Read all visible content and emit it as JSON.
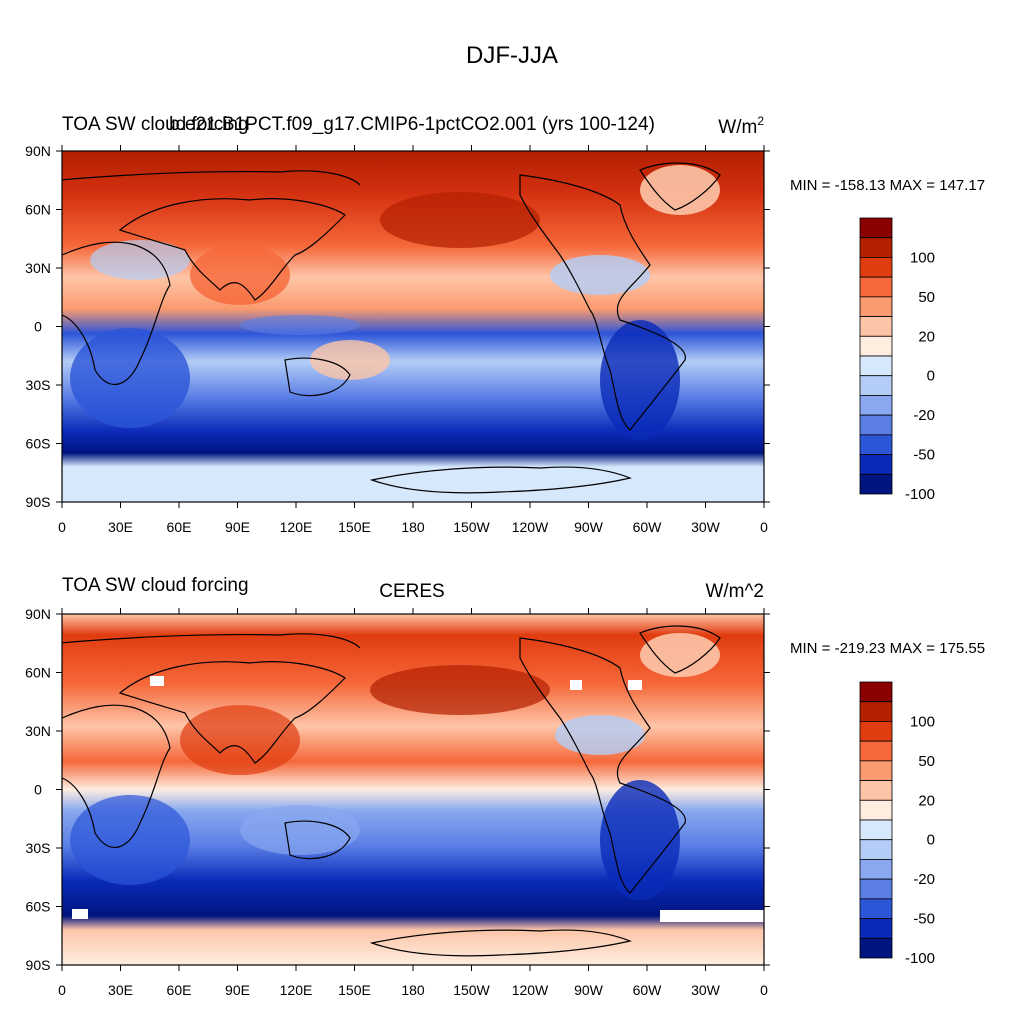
{
  "figure": {
    "title": "DJF-JJA"
  },
  "chart_data": [
    {
      "type": "heatmap",
      "title_left": "TOA SW cloud forcing",
      "title_center": "b.e21.B1PCT.f09_g17.CMIP6-1pctCO2.001 (yrs 100-124)",
      "units": "W/m",
      "units_sup": "2",
      "stats": "MIN = -158.13 MAX = 147.17",
      "min": -158.13,
      "max": 147.17,
      "x_ticks": [
        "0",
        "30E",
        "60E",
        "90E",
        "120E",
        "150E",
        "180",
        "150W",
        "120W",
        "90W",
        "60W",
        "30W",
        "0"
      ],
      "y_ticks": [
        "90N",
        "60N",
        "30N",
        "0",
        "30S",
        "60S",
        "90S"
      ],
      "colorbar_levels": [
        -100,
        -50,
        -20,
        0,
        20,
        50,
        100
      ],
      "colorbar_labels": [
        "100",
        "50",
        "20",
        "0",
        "-20",
        "-50",
        "-100"
      ],
      "colorbar_colors": [
        "#8b0000",
        "#b22000",
        "#e03c10",
        "#f6683a",
        "#fb9a6e",
        "#fdc5a8",
        "#fdeee0",
        "#d6e8fb",
        "#b3cdf6",
        "#89a8ef",
        "#5b7fe6",
        "#2c55d8",
        "#0a2ab8",
        "#00147f"
      ]
    },
    {
      "type": "heatmap",
      "title_left": "TOA SW cloud forcing",
      "title_center": "CERES",
      "units": "W/m^2",
      "units_sup": "",
      "stats": "MIN = -219.23 MAX = 175.55",
      "min": -219.23,
      "max": 175.55,
      "x_ticks": [
        "0",
        "30E",
        "60E",
        "90E",
        "120E",
        "150E",
        "180",
        "150W",
        "120W",
        "90W",
        "60W",
        "30W",
        "0"
      ],
      "y_ticks": [
        "90N",
        "60N",
        "30N",
        "0",
        "30S",
        "60S",
        "90S"
      ],
      "colorbar_levels": [
        -100,
        -50,
        -20,
        0,
        20,
        50,
        100
      ],
      "colorbar_labels": [
        "100",
        "50",
        "20",
        "0",
        "-20",
        "-50",
        "-100"
      ],
      "colorbar_colors": [
        "#8b0000",
        "#b22000",
        "#e03c10",
        "#f6683a",
        "#fb9a6e",
        "#fdc5a8",
        "#fdeee0",
        "#d6e8fb",
        "#b3cdf6",
        "#89a8ef",
        "#5b7fe6",
        "#2c55d8",
        "#0a2ab8",
        "#00147f"
      ]
    }
  ]
}
